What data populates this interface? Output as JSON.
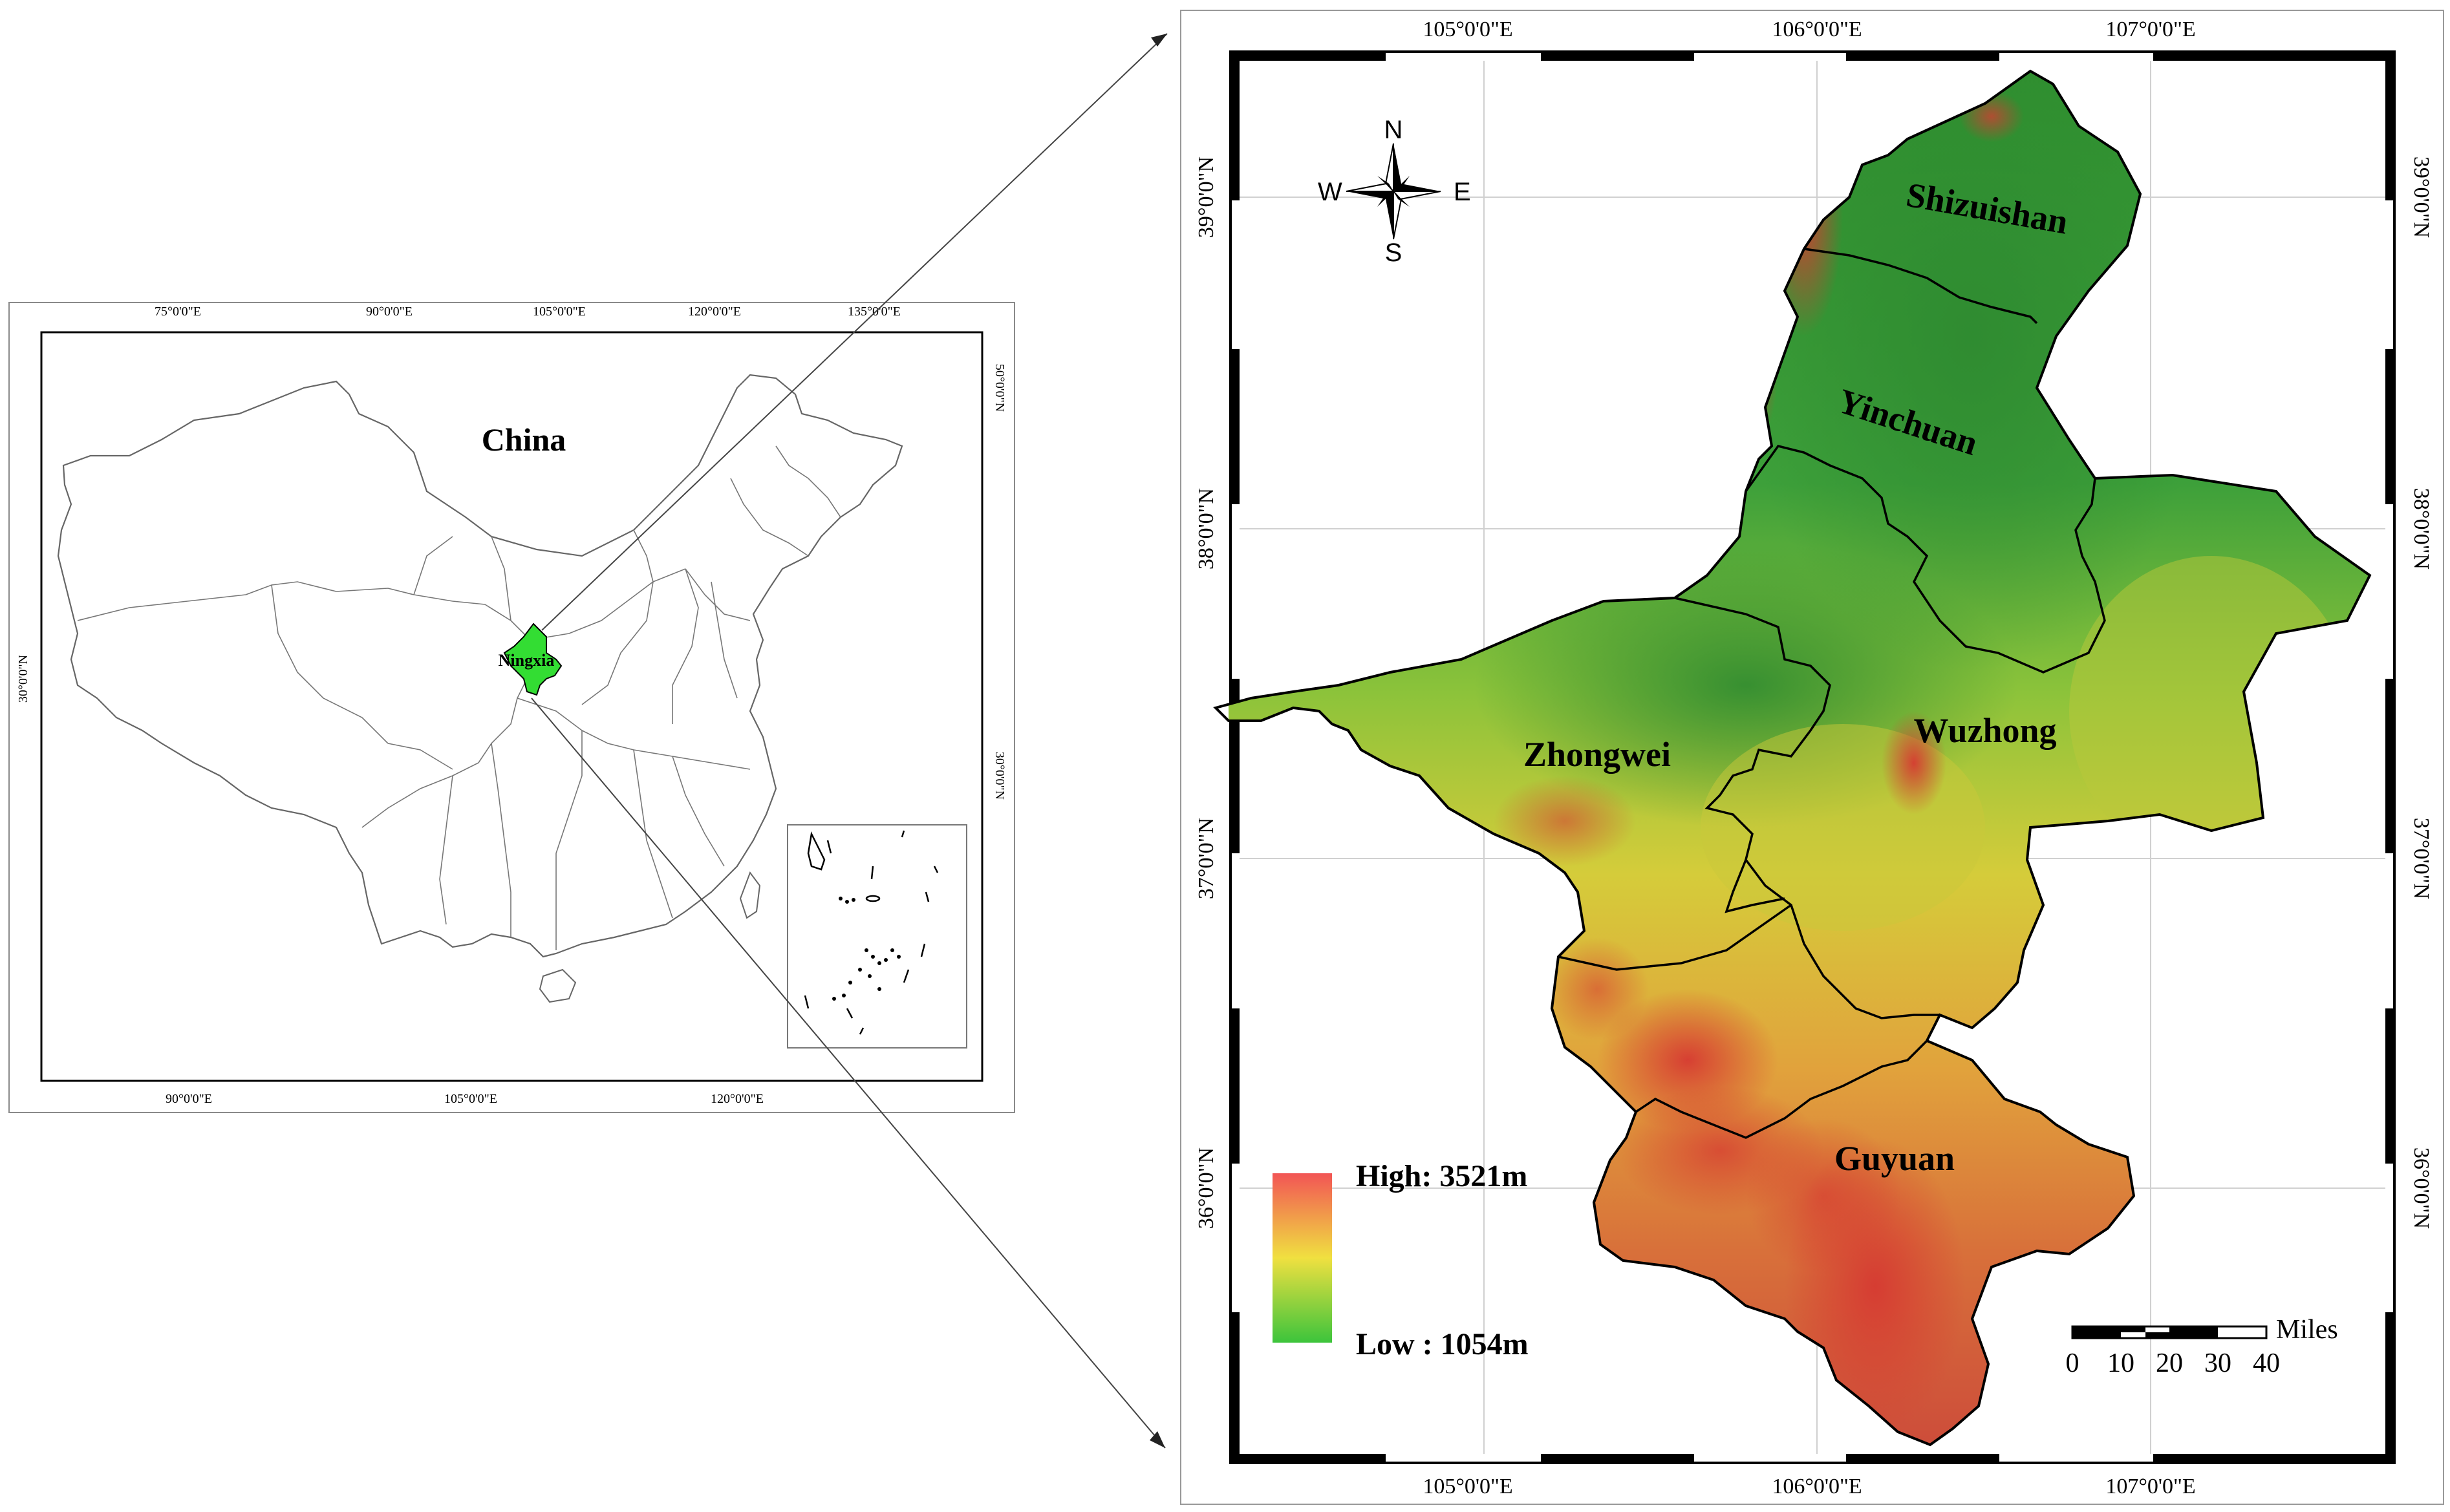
{
  "inset": {
    "title": "China",
    "highlight_label": "Ningxia",
    "highlight_color": "#33dd33",
    "top_ticks": [
      "75°0'0\"E",
      "90°0'0\"E",
      "105°0'0\"E",
      "120°0'0\"E",
      "135°0'0\"E"
    ],
    "bottom_ticks": [
      "90°0'0\"E",
      "105°0'0\"E",
      "120°0'0\"E"
    ],
    "left_ticks": [
      "30°0'0\"N"
    ],
    "right_ticks": [
      "50°0'0\"N",
      "30°0'0\"N"
    ]
  },
  "main": {
    "top_ticks": [
      "105°0'0\"E",
      "106°0'0\"E",
      "107°0'0\"E"
    ],
    "bottom_ticks": [
      "105°0'0\"E",
      "106°0'0\"E",
      "107°0'0\"E"
    ],
    "left_ticks": [
      "39°0'0\"N",
      "38°0'0\"N",
      "37°0'0\"N",
      "36°0'0\"N"
    ],
    "right_ticks": [
      "39°0'0\"N",
      "38°0'0\"N",
      "37°0'0\"N",
      "36°0'0\"N"
    ],
    "regions": [
      "Shizuishan",
      "Yinchuan",
      "Wuzhong",
      "Zhongwei",
      "Guyuan"
    ],
    "compass": {
      "n": "N",
      "s": "S",
      "e": "E",
      "w": "W"
    },
    "legend": {
      "high": "High: 3521m",
      "low": "Low : 1054m",
      "high_color": "#f25555",
      "mid_color": "#f0e040",
      "low_color": "#3cc43c"
    },
    "scale": {
      "unit": "Miles",
      "ticks": [
        "0",
        "10",
        "20",
        "30",
        "40"
      ]
    }
  }
}
